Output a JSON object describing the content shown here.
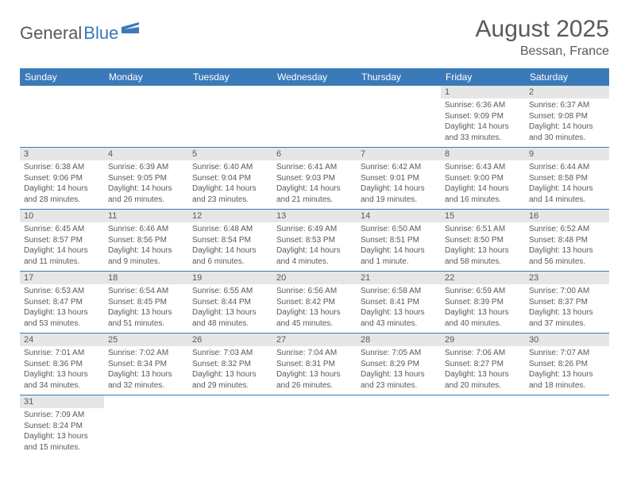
{
  "logo": {
    "part1": "General",
    "part2": "Blue"
  },
  "title": "August 2025",
  "location": "Bessan, France",
  "colors": {
    "header_bg": "#3a7ab8",
    "daynum_bg": "#e6e6e6",
    "text": "#595959",
    "border": "#3a7ab8",
    "page_bg": "#ffffff"
  },
  "day_names": [
    "Sunday",
    "Monday",
    "Tuesday",
    "Wednesday",
    "Thursday",
    "Friday",
    "Saturday"
  ],
  "weeks": [
    [
      null,
      null,
      null,
      null,
      null,
      {
        "n": "1",
        "sr": "6:36 AM",
        "ss": "9:09 PM",
        "dl": "14 hours and 33 minutes."
      },
      {
        "n": "2",
        "sr": "6:37 AM",
        "ss": "9:08 PM",
        "dl": "14 hours and 30 minutes."
      }
    ],
    [
      {
        "n": "3",
        "sr": "6:38 AM",
        "ss": "9:06 PM",
        "dl": "14 hours and 28 minutes."
      },
      {
        "n": "4",
        "sr": "6:39 AM",
        "ss": "9:05 PM",
        "dl": "14 hours and 26 minutes."
      },
      {
        "n": "5",
        "sr": "6:40 AM",
        "ss": "9:04 PM",
        "dl": "14 hours and 23 minutes."
      },
      {
        "n": "6",
        "sr": "6:41 AM",
        "ss": "9:03 PM",
        "dl": "14 hours and 21 minutes."
      },
      {
        "n": "7",
        "sr": "6:42 AM",
        "ss": "9:01 PM",
        "dl": "14 hours and 19 minutes."
      },
      {
        "n": "8",
        "sr": "6:43 AM",
        "ss": "9:00 PM",
        "dl": "14 hours and 16 minutes."
      },
      {
        "n": "9",
        "sr": "6:44 AM",
        "ss": "8:58 PM",
        "dl": "14 hours and 14 minutes."
      }
    ],
    [
      {
        "n": "10",
        "sr": "6:45 AM",
        "ss": "8:57 PM",
        "dl": "14 hours and 11 minutes."
      },
      {
        "n": "11",
        "sr": "6:46 AM",
        "ss": "8:56 PM",
        "dl": "14 hours and 9 minutes."
      },
      {
        "n": "12",
        "sr": "6:48 AM",
        "ss": "8:54 PM",
        "dl": "14 hours and 6 minutes."
      },
      {
        "n": "13",
        "sr": "6:49 AM",
        "ss": "8:53 PM",
        "dl": "14 hours and 4 minutes."
      },
      {
        "n": "14",
        "sr": "6:50 AM",
        "ss": "8:51 PM",
        "dl": "14 hours and 1 minute."
      },
      {
        "n": "15",
        "sr": "6:51 AM",
        "ss": "8:50 PM",
        "dl": "13 hours and 58 minutes."
      },
      {
        "n": "16",
        "sr": "6:52 AM",
        "ss": "8:48 PM",
        "dl": "13 hours and 56 minutes."
      }
    ],
    [
      {
        "n": "17",
        "sr": "6:53 AM",
        "ss": "8:47 PM",
        "dl": "13 hours and 53 minutes."
      },
      {
        "n": "18",
        "sr": "6:54 AM",
        "ss": "8:45 PM",
        "dl": "13 hours and 51 minutes."
      },
      {
        "n": "19",
        "sr": "6:55 AM",
        "ss": "8:44 PM",
        "dl": "13 hours and 48 minutes."
      },
      {
        "n": "20",
        "sr": "6:56 AM",
        "ss": "8:42 PM",
        "dl": "13 hours and 45 minutes."
      },
      {
        "n": "21",
        "sr": "6:58 AM",
        "ss": "8:41 PM",
        "dl": "13 hours and 43 minutes."
      },
      {
        "n": "22",
        "sr": "6:59 AM",
        "ss": "8:39 PM",
        "dl": "13 hours and 40 minutes."
      },
      {
        "n": "23",
        "sr": "7:00 AM",
        "ss": "8:37 PM",
        "dl": "13 hours and 37 minutes."
      }
    ],
    [
      {
        "n": "24",
        "sr": "7:01 AM",
        "ss": "8:36 PM",
        "dl": "13 hours and 34 minutes."
      },
      {
        "n": "25",
        "sr": "7:02 AM",
        "ss": "8:34 PM",
        "dl": "13 hours and 32 minutes."
      },
      {
        "n": "26",
        "sr": "7:03 AM",
        "ss": "8:32 PM",
        "dl": "13 hours and 29 minutes."
      },
      {
        "n": "27",
        "sr": "7:04 AM",
        "ss": "8:31 PM",
        "dl": "13 hours and 26 minutes."
      },
      {
        "n": "28",
        "sr": "7:05 AM",
        "ss": "8:29 PM",
        "dl": "13 hours and 23 minutes."
      },
      {
        "n": "29",
        "sr": "7:06 AM",
        "ss": "8:27 PM",
        "dl": "13 hours and 20 minutes."
      },
      {
        "n": "30",
        "sr": "7:07 AM",
        "ss": "8:26 PM",
        "dl": "13 hours and 18 minutes."
      }
    ],
    [
      {
        "n": "31",
        "sr": "7:09 AM",
        "ss": "8:24 PM",
        "dl": "13 hours and 15 minutes."
      },
      null,
      null,
      null,
      null,
      null,
      null
    ]
  ],
  "labels": {
    "sunrise": "Sunrise:",
    "sunset": "Sunset:",
    "daylight": "Daylight:"
  }
}
